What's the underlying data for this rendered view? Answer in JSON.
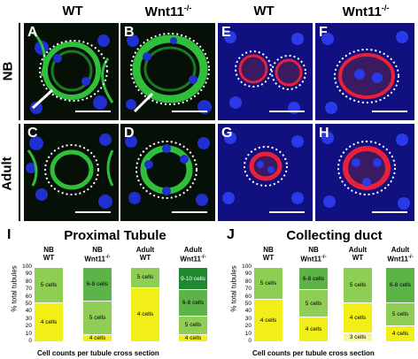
{
  "columns": {
    "wt1": "WT",
    "wnt1_base": "Wnt11",
    "wnt1_sup": "-/-",
    "wt2": "WT",
    "wnt2_base": "Wnt11",
    "wnt2_sup": "-/-"
  },
  "rows": {
    "nb": "NB",
    "adult": "Adult"
  },
  "panel_labels": [
    "A",
    "B",
    "E",
    "F",
    "C",
    "D",
    "G",
    "H"
  ],
  "figure_labels": {
    "left": "I",
    "right": "J"
  },
  "colors": {
    "green_stain": "#2fbf3a",
    "red_stain": "#e8203c",
    "nuclei": "#1f2fd0",
    "yellow": "#f2ef18",
    "light_yellow": "#f8f5a0",
    "light_green": "#8fce55",
    "mid_green": "#5cb348",
    "dark_green": "#1e8a2e"
  },
  "chart_data": [
    {
      "type": "bar",
      "stacked": true,
      "title": "Proximal Tubule",
      "ylabel": "% total tubules",
      "xlabel": "Cell counts per tubule cross section",
      "ylim": [
        0,
        100
      ],
      "yticks": [
        0,
        10,
        20,
        30,
        40,
        50,
        60,
        70,
        80,
        90,
        100
      ],
      "categories": [
        "NB WT",
        "NB Wnt11-/-",
        "Adult WT",
        "Adult Wnt11-/-"
      ],
      "bars": [
        {
          "header1": "NB",
          "header2": "WT",
          "sup": "",
          "segments": [
            {
              "label": "4 cells",
              "value": 52,
              "color": "#f2ef18"
            },
            {
              "label": "5 cells",
              "value": 48,
              "color": "#8fce55"
            }
          ]
        },
        {
          "header1": "NB",
          "header2": "Wnt11",
          "sup": "-/-",
          "segments": [
            {
              "label": "4 cells",
              "value": 10,
              "color": "#f2ef18"
            },
            {
              "label": "5 cells",
              "value": 45,
              "color": "#8fce55"
            },
            {
              "label": "6-8 cells",
              "value": 45,
              "color": "#5cb348"
            }
          ]
        },
        {
          "header1": "Adult",
          "header2": "WT",
          "sup": "",
          "segments": [
            {
              "label": "4 cells",
              "value": 73,
              "color": "#f2ef18"
            },
            {
              "label": "5 cells",
              "value": 27,
              "color": "#8fce55"
            }
          ]
        },
        {
          "header1": "Adult",
          "header2": "Wnt11",
          "sup": "-/-",
          "segments": [
            {
              "label": "4 cells",
              "value": 10,
              "color": "#f2ef18"
            },
            {
              "label": "5 cells",
              "value": 25,
              "color": "#8fce55"
            },
            {
              "label": "6-8 cells",
              "value": 35,
              "color": "#5cb348"
            },
            {
              "label": "9-10 cells",
              "value": 30,
              "color": "#1e8a2e"
            }
          ]
        }
      ]
    },
    {
      "type": "bar",
      "stacked": true,
      "title": "Collecting duct",
      "ylabel": "% total tubules",
      "xlabel": "Cell counts per tubule cross section",
      "ylim": [
        0,
        100
      ],
      "yticks": [
        0,
        10,
        20,
        30,
        40,
        50,
        60,
        70,
        80,
        90,
        100
      ],
      "categories": [
        "NB WT",
        "NB Wnt11-/-",
        "Adult WT",
        "Adult Wnt11-/-"
      ],
      "bars": [
        {
          "header1": "NB",
          "header2": "WT",
          "sup": "",
          "segments": [
            {
              "label": "4 cells",
              "value": 57,
              "color": "#f2ef18"
            },
            {
              "label": "5 cells",
              "value": 43,
              "color": "#8fce55"
            }
          ]
        },
        {
          "header1": "NB",
          "header2": "Wnt11",
          "sup": "-/-",
          "segments": [
            {
              "label": "4 cells",
              "value": 33,
              "color": "#f2ef18"
            },
            {
              "label": "5 cells",
              "value": 37,
              "color": "#8fce55"
            },
            {
              "label": "6-8 cells",
              "value": 30,
              "color": "#5cb348"
            }
          ]
        },
        {
          "header1": "Adult",
          "header2": "WT",
          "sup": "",
          "segments": [
            {
              "label": "3 cells",
              "value": 12,
              "color": "#f8f5a0"
            },
            {
              "label": "4 cells",
              "value": 40,
              "color": "#f2ef18"
            },
            {
              "label": "5 cells",
              "value": 48,
              "color": "#8fce55"
            }
          ]
        },
        {
          "header1": "Adult",
          "header2": "Wnt11",
          "sup": "-/-",
          "segments": [
            {
              "label": "4 cells",
              "value": 22,
              "color": "#f2ef18"
            },
            {
              "label": "5 cells",
              "value": 30,
              "color": "#8fce55"
            },
            {
              "label": "6-8 cells",
              "value": 48,
              "color": "#5cb348"
            }
          ]
        }
      ]
    }
  ]
}
